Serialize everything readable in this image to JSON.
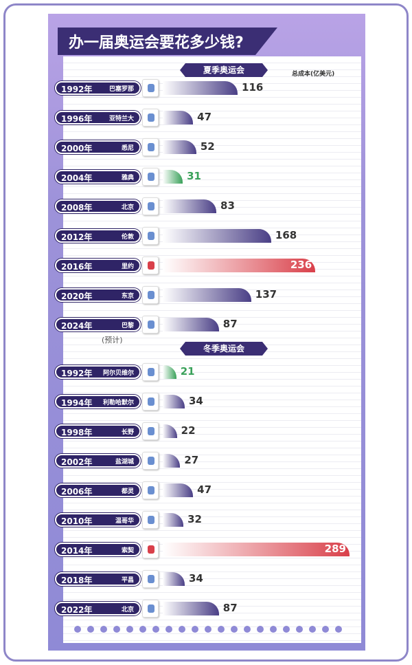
{
  "chart_data": {
    "type": "bar",
    "title": "办一届奥运会要花多少钱?",
    "unit_label": "总成本(亿美元)",
    "groups": [
      {
        "name": "夏季奥运会",
        "items": [
          {
            "year": "1992年",
            "city": "巴塞罗那",
            "value": 116
          },
          {
            "year": "1996年",
            "city": "亚特兰大",
            "value": 47
          },
          {
            "year": "2000年",
            "city": "悉尼",
            "value": 52
          },
          {
            "year": "2004年",
            "city": "雅典",
            "value": 31
          },
          {
            "year": "2008年",
            "city": "北京",
            "value": 83
          },
          {
            "year": "2012年",
            "city": "伦敦",
            "value": 168
          },
          {
            "year": "2016年",
            "city": "里约",
            "value": 236
          },
          {
            "year": "2020年",
            "city": "东京",
            "value": 137
          },
          {
            "year": "2024年",
            "city": "巴黎",
            "value": 87,
            "note": "(预计)"
          }
        ]
      },
      {
        "name": "冬季奥运会",
        "items": [
          {
            "year": "1992年",
            "city": "阿尔贝维尔",
            "value": 21
          },
          {
            "year": "1994年",
            "city": "利勒哈默尔",
            "value": 34
          },
          {
            "year": "1998年",
            "city": "长野",
            "value": 22
          },
          {
            "year": "2002年",
            "city": "盐湖城",
            "value": 27
          },
          {
            "year": "2006年",
            "city": "都灵",
            "value": 47
          },
          {
            "year": "2010年",
            "city": "温哥华",
            "value": 32
          },
          {
            "year": "2014年",
            "city": "索契",
            "value": 289
          },
          {
            "year": "2018年",
            "city": "平昌",
            "value": 34
          },
          {
            "year": "2022年",
            "city": "北京",
            "value": 87
          }
        ]
      }
    ],
    "colors": {
      "normal": "#4a3f86",
      "max": "#d9404a",
      "min": "#3aa15a"
    }
  }
}
